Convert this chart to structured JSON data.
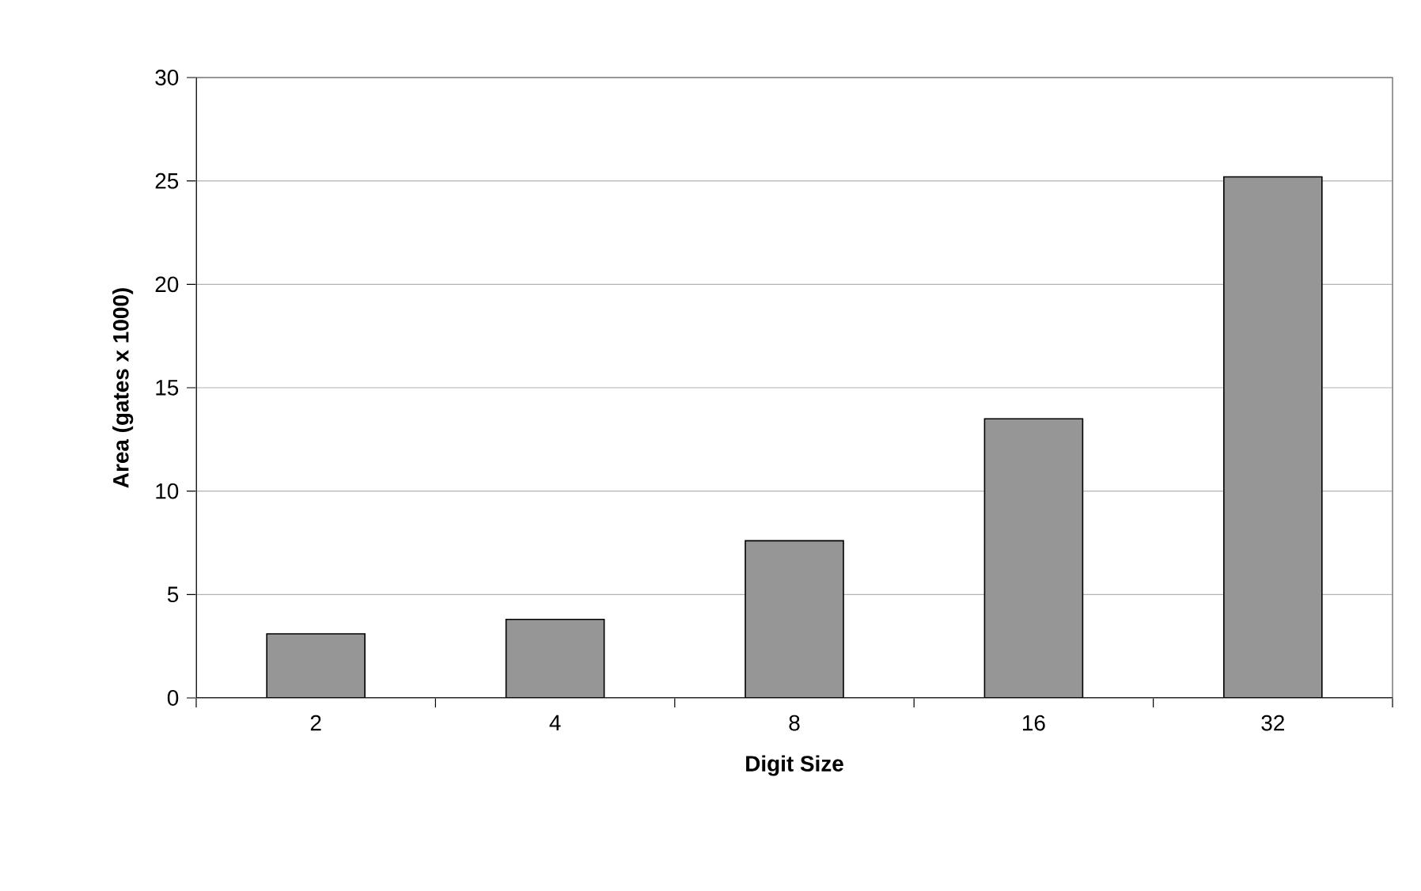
{
  "chart_data": {
    "type": "bar",
    "xlabel": "Digit Size",
    "ylabel": "Area (gates x 1000)",
    "categories": [
      "2",
      "4",
      "8",
      "16",
      "32"
    ],
    "values": [
      3.1,
      3.8,
      7.6,
      13.5,
      25.2
    ],
    "color": "#969696",
    "ylim": [
      0,
      30
    ],
    "yticks": [
      0,
      5,
      10,
      15,
      20,
      25,
      30
    ],
    "grid": "y"
  }
}
